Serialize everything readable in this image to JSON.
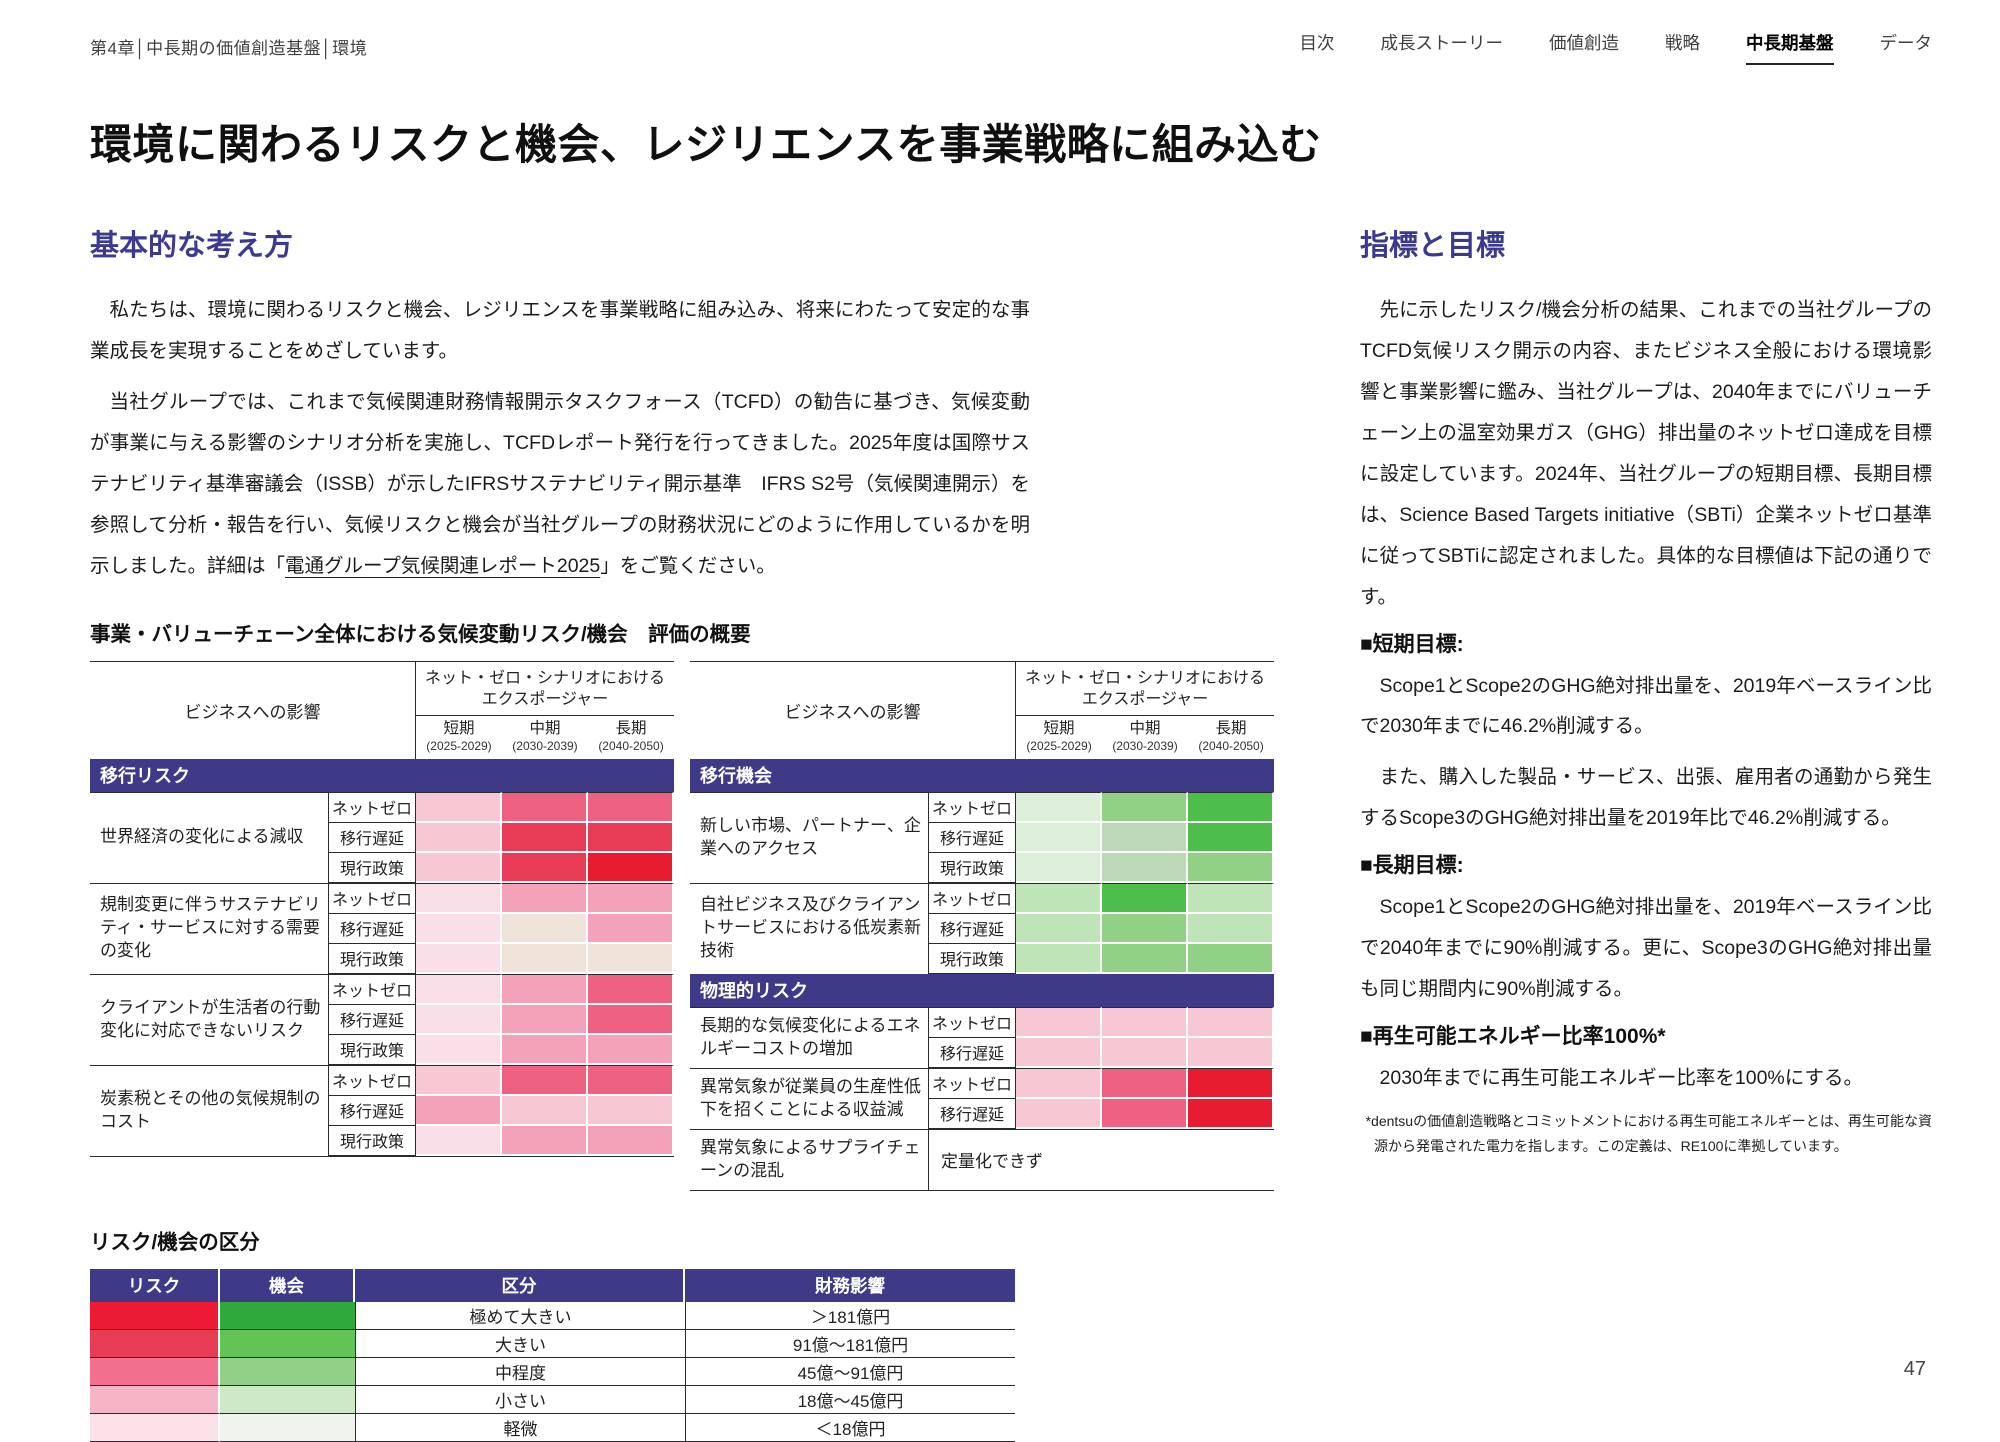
{
  "theme": {
    "accent_purple": "#3C3A8E",
    "band_indigo": "#3E3A87",
    "text": "#1c1c1c"
  },
  "header": {
    "breadcrumb": "第4章│中長期の価値創造基盤│環境",
    "nav": [
      {
        "name": "toc",
        "label": "目次",
        "active": false
      },
      {
        "name": "growth-story",
        "label": "成長ストーリー",
        "active": false
      },
      {
        "name": "value-creation",
        "label": "価値創造",
        "active": false
      },
      {
        "name": "strategy",
        "label": "戦略",
        "active": false
      },
      {
        "name": "mid-long-term-foundation",
        "label": "中長期基盤",
        "active": true
      },
      {
        "name": "data",
        "label": "データ",
        "active": false
      }
    ]
  },
  "page_title": "環境に関わるリスクと機会、レジリエンスを事業戦略に組み込む",
  "left": {
    "section_title": "基本的な考え方",
    "para1": "私たちは、環境に関わるリスクと機会、レジリエンスを事業戦略に組み込み、将来にわたって安定的な事業成長を実現することをめざしています。",
    "para2_pre": "当社グループでは、これまで気候関連財務情報開示タスクフォース（TCFD）の勧告に基づき、気候変動が事業に与える影響のシナリオ分析を実施し、TCFDレポート発行を行ってきました。2025年度は国際サステナビリティ基準審議会（ISSB）が示したIFRSサステナビリティ開示基準　IFRS S2号（気候関連開示）を参照して分析・報告を行い、気候リスクと機会が当社グループの財務状況にどのように作用しているかを明示しました。詳細は「",
    "para2_link": "電通グループ気候関連レポート2025",
    "para2_post": "」をご覧ください。",
    "table_caption": "事業・バリューチェーン全体における気候変動リスク/機会　評価の概要"
  },
  "heatmap": {
    "palette": {
      "p1": "#FBDFE8",
      "p2": "#F8C7D4",
      "p3": "#F4A2B9",
      "p3h": "#EF6181",
      "p4": "#E73B56",
      "p5": "#E81C31",
      "beige": "#F0E4DA",
      "g1": "#DCEFD8",
      "g2": "#BFE4B7",
      "g3": "#90D186",
      "g4": "#4DBE4C",
      "gg": "#BDD7B9"
    },
    "header": {
      "business_impact": "ビジネスへの影響",
      "exposure_line1": "ネット・ゼロ・シナリオにおける",
      "exposure_line2": "エクスポージャー",
      "periods": [
        {
          "label": "短期",
          "range": "(2025-2029)"
        },
        {
          "label": "中期",
          "range": "(2030-2039)"
        },
        {
          "label": "長期",
          "range": "(2040-2050)"
        }
      ]
    },
    "tables": [
      {
        "id": "left",
        "sections": [
          {
            "band": "移行リスク",
            "groups": [
              {
                "name": "世界経済の変化による減収",
                "rows": [
                  {
                    "scenario": "ネットゼロ",
                    "levels": [
                      "p2",
                      "p3h",
                      "p3h"
                    ]
                  },
                  {
                    "scenario": "移行遅延",
                    "levels": [
                      "p2",
                      "p4",
                      "p4"
                    ]
                  },
                  {
                    "scenario": "現行政策",
                    "levels": [
                      "p2",
                      "p4",
                      "p5"
                    ]
                  }
                ]
              },
              {
                "name": "規制変更に伴うサステナビリティ・サービスに対する需要の変化",
                "rows": [
                  {
                    "scenario": "ネットゼロ",
                    "levels": [
                      "p1",
                      "p3",
                      "p3"
                    ]
                  },
                  {
                    "scenario": "移行遅延",
                    "levels": [
                      "p1",
                      "beige",
                      "p3"
                    ]
                  },
                  {
                    "scenario": "現行政策",
                    "levels": [
                      "p1",
                      "beige",
                      "beige"
                    ]
                  }
                ]
              },
              {
                "name": "クライアントが生活者の行動変化に対応できないリスク",
                "rows": [
                  {
                    "scenario": "ネットゼロ",
                    "levels": [
                      "p1",
                      "p3",
                      "p3h"
                    ]
                  },
                  {
                    "scenario": "移行遅延",
                    "levels": [
                      "p1",
                      "p3",
                      "p3h"
                    ]
                  },
                  {
                    "scenario": "現行政策",
                    "levels": [
                      "p1",
                      "p3",
                      "p3"
                    ]
                  }
                ]
              },
              {
                "name": "炭素税とその他の気候規制のコスト",
                "rows": [
                  {
                    "scenario": "ネットゼロ",
                    "levels": [
                      "p2",
                      "p3h",
                      "p3h"
                    ]
                  },
                  {
                    "scenario": "移行遅延",
                    "levels": [
                      "p3",
                      "p2",
                      "p2"
                    ]
                  },
                  {
                    "scenario": "現行政策",
                    "levels": [
                      "p1",
                      "p3",
                      "p3"
                    ]
                  }
                ]
              }
            ]
          }
        ]
      },
      {
        "id": "right",
        "sections": [
          {
            "band": "移行機会",
            "groups": [
              {
                "name": "新しい市場、パートナー、企業へのアクセス",
                "rows": [
                  {
                    "scenario": "ネットゼロ",
                    "levels": [
                      "g1",
                      "g3",
                      "g4"
                    ]
                  },
                  {
                    "scenario": "移行遅延",
                    "levels": [
                      "g1",
                      "gg",
                      "g4"
                    ]
                  },
                  {
                    "scenario": "現行政策",
                    "levels": [
                      "g1",
                      "gg",
                      "g3"
                    ]
                  }
                ]
              },
              {
                "name": "自社ビジネス及びクライアントサービスにおける低炭素新技術",
                "rows": [
                  {
                    "scenario": "ネットゼロ",
                    "levels": [
                      "g2",
                      "g4",
                      "g2"
                    ]
                  },
                  {
                    "scenario": "移行遅延",
                    "levels": [
                      "g2",
                      "g3",
                      "g2"
                    ]
                  },
                  {
                    "scenario": "現行政策",
                    "levels": [
                      "g2",
                      "g3",
                      "g3"
                    ]
                  }
                ]
              }
            ]
          },
          {
            "band": "物理的リスク",
            "groups": [
              {
                "name": "長期的な気候変化によるエネルギーコストの増加",
                "rows": [
                  {
                    "scenario": "ネットゼロ",
                    "levels": [
                      "p2",
                      "p2",
                      "p2"
                    ]
                  },
                  {
                    "scenario": "移行遅延",
                    "levels": [
                      "p2",
                      "p2",
                      "p2"
                    ]
                  }
                ]
              },
              {
                "name": "異常気象が従業員の生産性低下を招くことによる収益減",
                "rows": [
                  {
                    "scenario": "ネットゼロ",
                    "levels": [
                      "p2",
                      "p3h",
                      "p5"
                    ]
                  },
                  {
                    "scenario": "移行遅延",
                    "levels": [
                      "p2",
                      "p3h",
                      "p5"
                    ]
                  }
                ]
              },
              {
                "name": "異常気象によるサプライチェーンの混乱",
                "note": "定量化できず"
              }
            ]
          }
        ]
      }
    ]
  },
  "legend": {
    "title": "リスク/機会の区分",
    "headers": [
      "リスク",
      "機会",
      "区分",
      "財務影響"
    ],
    "rows": [
      {
        "risk": "#EB1B33",
        "opportunity": "#2FA93C",
        "category": "極めて大きい",
        "impact": "＞181億円"
      },
      {
        "risk": "#E73B56",
        "opportunity": "#63C456",
        "category": "大きい",
        "impact": "91億〜181億円"
      },
      {
        "risk": "#F2708D",
        "opportunity": "#92CF87",
        "category": "中程度",
        "impact": "45億〜91億円"
      },
      {
        "risk": "#F6B5C7",
        "opportunity": "#CEE9C6",
        "category": "小さい",
        "impact": "18億〜45億円"
      },
      {
        "risk": "#FBE2E9",
        "opportunity": "#F0F4ED",
        "category": "軽微",
        "impact": "＜18億円"
      }
    ]
  },
  "right": {
    "section_title": "指標と目標",
    "intro": "先に示したリスク/機会分析の結果、これまでの当社グループのTCFD気候リスク開示の内容、またビジネス全般における環境影響と事業影響に鑑み、当社グループは、2040年までにバリューチェーン上の温室効果ガス（GHG）排出量のネットゼロ達成を目標に設定しています。2024年、当社グループの短期目標、長期目標は、Science Based Targets initiative（SBTi）企業ネットゼロ基準に従ってSBTiに認定されました。具体的な目標値は下記の通りです。",
    "short_heading": "■短期目標:",
    "short_p1": "Scope1とScope2のGHG絶対排出量を、2019年ベースライン比で2030年までに46.2%削減する。",
    "short_p2": "また、購入した製品・サービス、出張、雇用者の通勤から発生するScope3のGHG絶対排出量を2019年比で46.2%削減する。",
    "long_heading": "■長期目標:",
    "long_p": "Scope1とScope2のGHG絶対排出量を、2019年ベースライン比で2040年までに90%削減する。更に、Scope3のGHG絶対排出量も同じ期間内に90%削減する。",
    "renew_heading": "■再生可能エネルギー比率100%*",
    "renew_p": "2030年までに再生可能エネルギー比率を100%にする。",
    "footnote": "*dentsuの価値創造戦略とコミットメントにおける再生可能エネルギーとは、再生可能な資源から発電された電力を指します。この定義は、RE100に準拠しています。"
  },
  "page_number": "47"
}
